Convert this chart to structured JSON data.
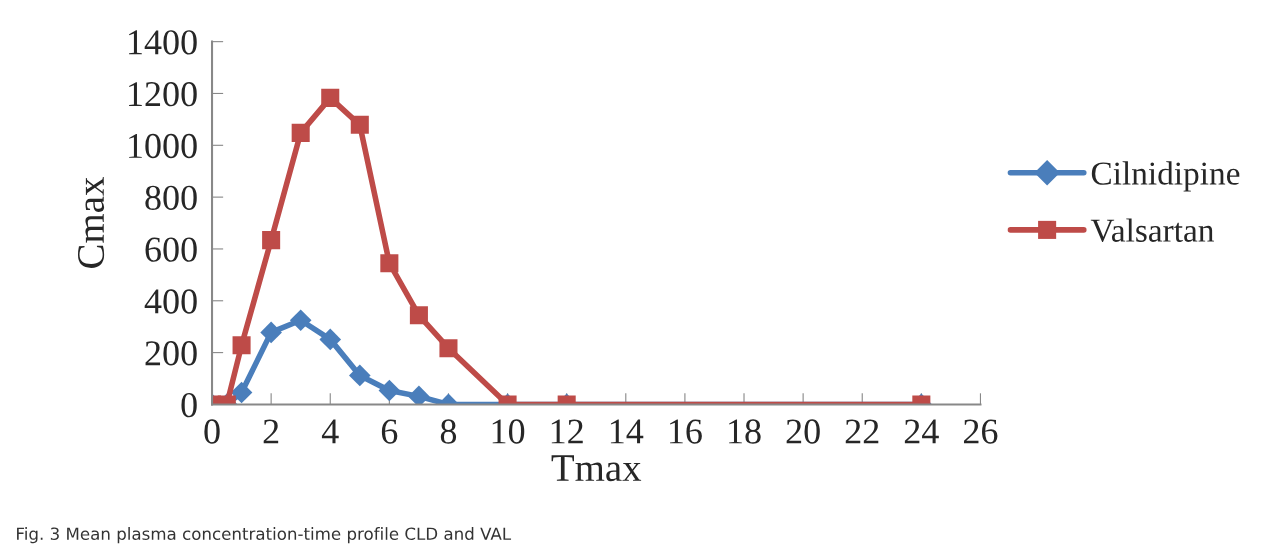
{
  "chart_data": {
    "type": "line",
    "xlabel": "Tmax",
    "ylabel": "Cmax",
    "xlim": [
      0,
      26
    ],
    "xticks": [
      0,
      2,
      4,
      6,
      8,
      10,
      12,
      14,
      16,
      18,
      20,
      22,
      24,
      26
    ],
    "ylim": [
      0,
      1400
    ],
    "yticks": [
      0,
      200,
      400,
      600,
      800,
      1000,
      1200,
      1400
    ],
    "grid": false,
    "legend": "right",
    "line_style": "solid",
    "annotations": [
      "Fig. 3 Mean plasma concentration-time profile CLD and VAL"
    ],
    "series": [
      {
        "name": "Cilnidipine",
        "color": "#4a7ebb",
        "marker": "diamond",
        "x": [
          0,
          0.5,
          1,
          2,
          3,
          4,
          5,
          6,
          7,
          8,
          10,
          12,
          24
        ],
        "values": [
          0,
          0,
          46,
          278,
          325,
          251,
          112,
          54,
          31,
          0,
          0,
          0,
          0
        ]
      },
      {
        "name": "Valsartan",
        "color": "#be4b48",
        "marker": "square",
        "x": [
          0,
          0.5,
          1,
          2,
          3,
          4,
          5,
          6,
          7,
          8,
          10,
          12,
          24
        ],
        "values": [
          0,
          0,
          228,
          634,
          1048,
          1183,
          1079,
          545,
          344,
          217,
          0,
          0,
          0
        ]
      }
    ]
  }
}
